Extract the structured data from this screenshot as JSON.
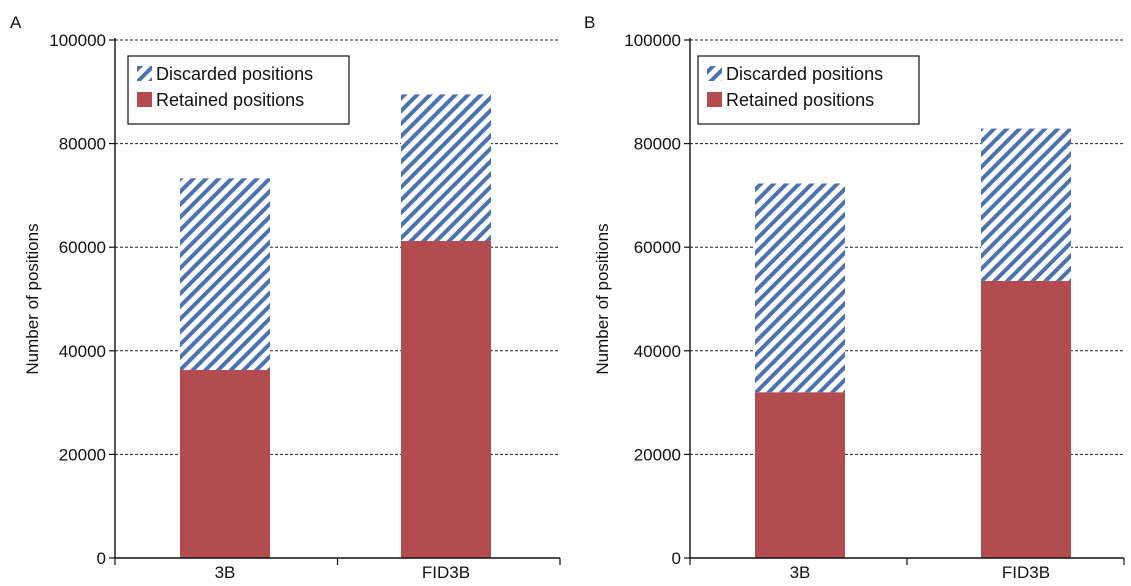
{
  "chart_data": [
    {
      "panel_label": "A",
      "type": "bar",
      "stacked": true,
      "categories": [
        "3B",
        "FID3B"
      ],
      "series": [
        {
          "name": "Retained positions",
          "values": [
            36300,
            61200
          ],
          "color": "#b34c4e",
          "pattern": "solid"
        },
        {
          "name": "Discarded positions",
          "values": [
            37000,
            28300
          ],
          "color": "#4c72b0",
          "pattern": "diagonal-hatch"
        }
      ],
      "ylabel": "Number of positions",
      "ylim": [
        0,
        100000
      ],
      "yticks": [
        "0",
        "20000",
        "40000",
        "60000",
        "80000",
        "100000"
      ],
      "grid": "horizontal-dashed",
      "legend_placement": "top-left",
      "legend_order": [
        "Discarded positions",
        "Retained positions"
      ]
    },
    {
      "panel_label": "B",
      "type": "bar",
      "stacked": true,
      "categories": [
        "3B",
        "FID3B"
      ],
      "series": [
        {
          "name": "Retained positions",
          "values": [
            32000,
            53500
          ],
          "color": "#b34c4e",
          "pattern": "solid"
        },
        {
          "name": "Discarded positions",
          "values": [
            40300,
            29400
          ],
          "color": "#4c72b0",
          "pattern": "diagonal-hatch"
        }
      ],
      "ylabel": "Number of positions",
      "ylim": [
        0,
        100000
      ],
      "yticks": [
        "0",
        "20000",
        "40000",
        "60000",
        "80000",
        "100000"
      ],
      "grid": "horizontal-dashed",
      "legend_placement": "top-left",
      "legend_order": [
        "Discarded positions",
        "Retained positions"
      ]
    }
  ]
}
